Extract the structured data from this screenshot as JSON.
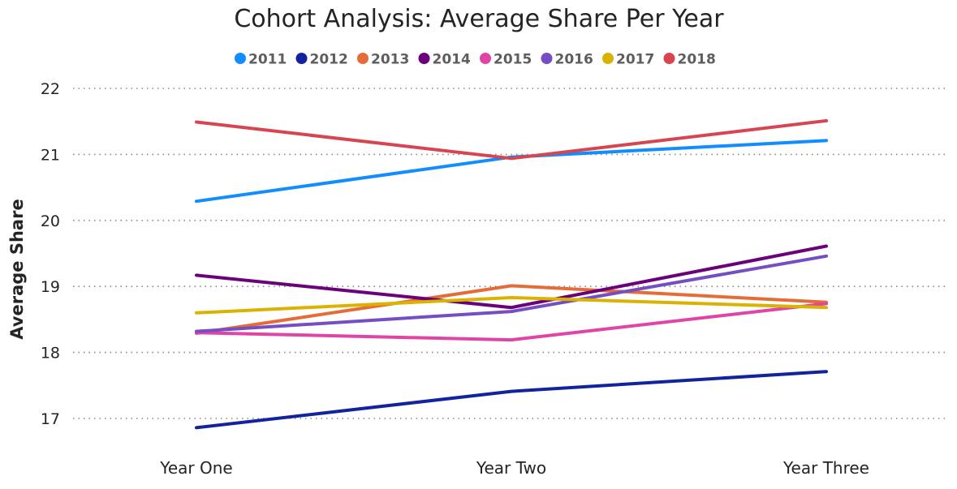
{
  "chart_data": {
    "type": "line",
    "title": "Cohort Analysis: Average Share Per Year",
    "xlabel": "",
    "ylabel": "Average Share",
    "categories": [
      "Year One",
      "Year Two",
      "Year Three"
    ],
    "ylim": [
      17,
      22
    ],
    "yticks": [
      17,
      18,
      19,
      20,
      21,
      22
    ],
    "grid": true,
    "legend_position": "top-center",
    "series": [
      {
        "name": "2011",
        "color": "#118dff",
        "values": [
          20.29,
          20.96,
          21.21
        ]
      },
      {
        "name": "2012",
        "color": "#12239e",
        "values": [
          16.86,
          17.41,
          17.71
        ]
      },
      {
        "name": "2013",
        "color": "#e66c37",
        "values": [
          18.29,
          19.01,
          18.76
        ]
      },
      {
        "name": "2014",
        "color": "#6b007b",
        "values": [
          19.17,
          18.68,
          19.61
        ]
      },
      {
        "name": "2015",
        "color": "#e044a7",
        "values": [
          18.3,
          18.19,
          18.74
        ]
      },
      {
        "name": "2016",
        "color": "#744ec2",
        "values": [
          18.32,
          18.62,
          19.46
        ]
      },
      {
        "name": "2017",
        "color": "#d9b300",
        "values": [
          18.6,
          18.83,
          18.68
        ]
      },
      {
        "name": "2018",
        "color": "#d64550",
        "values": [
          21.49,
          20.94,
          21.51
        ]
      }
    ]
  }
}
